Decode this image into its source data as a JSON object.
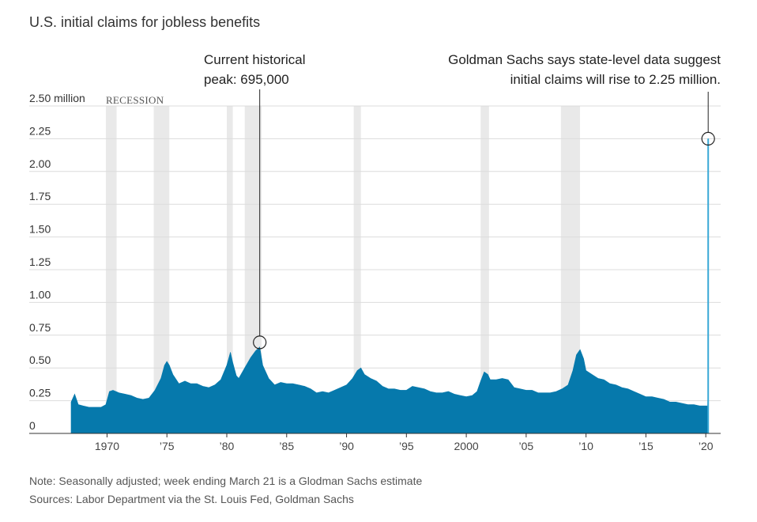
{
  "chart_data": {
    "type": "area",
    "title": "U.S. initial claims for jobless benefits",
    "y_unit_label": "2.50 million",
    "ylim": [
      0,
      2.5
    ],
    "xlim": [
      1967.0,
      2020.45
    ],
    "y_ticks": [
      {
        "value": 0,
        "label": "0"
      },
      {
        "value": 0.25,
        "label": "0.25"
      },
      {
        "value": 0.5,
        "label": "0.50"
      },
      {
        "value": 0.75,
        "label": "0.75"
      },
      {
        "value": 1.0,
        "label": "1.00"
      },
      {
        "value": 1.25,
        "label": "1.25"
      },
      {
        "value": 1.5,
        "label": "1.50"
      },
      {
        "value": 1.75,
        "label": "1.75"
      },
      {
        "value": 2.0,
        "label": "2.00"
      },
      {
        "value": 2.25,
        "label": "2.25"
      },
      {
        "value": 2.5,
        "label": "2.50 million"
      }
    ],
    "x_ticks": [
      {
        "value": 1970,
        "label": "1970"
      },
      {
        "value": 1975,
        "label": "’75"
      },
      {
        "value": 1980,
        "label": "’80"
      },
      {
        "value": 1985,
        "label": "’85"
      },
      {
        "value": 1990,
        "label": "’90"
      },
      {
        "value": 1995,
        "label": "’95"
      },
      {
        "value": 2000,
        "label": "2000"
      },
      {
        "value": 2005,
        "label": "’05"
      },
      {
        "value": 2010,
        "label": "’10"
      },
      {
        "value": 2015,
        "label": "’15"
      },
      {
        "value": 2020,
        "label": "’20"
      }
    ],
    "recession_label": "RECESSION",
    "recessions": [
      [
        1969.9,
        1970.8
      ],
      [
        1973.9,
        1975.2
      ],
      [
        1980.0,
        1980.5
      ],
      [
        1981.5,
        1982.9
      ],
      [
        1990.6,
        1991.2
      ],
      [
        2001.2,
        2001.9
      ],
      [
        2007.9,
        2009.5
      ]
    ],
    "series": [
      {
        "color": "#0679ac",
        "x": [
          1967.0,
          1967.3,
          1967.6,
          1968.0,
          1968.5,
          1969.0,
          1969.5,
          1969.9,
          1970.2,
          1970.5,
          1971.0,
          1971.5,
          1972.0,
          1972.5,
          1973.0,
          1973.5,
          1974.0,
          1974.5,
          1974.8,
          1975.0,
          1975.2,
          1975.5,
          1976.0,
          1976.5,
          1977.0,
          1977.5,
          1978.0,
          1978.5,
          1979.0,
          1979.5,
          1980.0,
          1980.3,
          1980.5,
          1980.8,
          1981.0,
          1981.5,
          1982.0,
          1982.4,
          1982.75,
          1983.0,
          1983.5,
          1984.0,
          1984.5,
          1985.0,
          1985.5,
          1986.0,
          1986.5,
          1987.0,
          1987.5,
          1988.0,
          1988.5,
          1989.0,
          1989.5,
          1990.0,
          1990.5,
          1990.9,
          1991.2,
          1991.5,
          1992.0,
          1992.5,
          1993.0,
          1993.5,
          1994.0,
          1994.5,
          1995.0,
          1995.5,
          1996.0,
          1996.5,
          1997.0,
          1997.5,
          1998.0,
          1998.5,
          1999.0,
          1999.5,
          2000.0,
          2000.5,
          2000.9,
          2001.2,
          2001.5,
          2001.8,
          2002.0,
          2002.5,
          2003.0,
          2003.5,
          2004.0,
          2004.5,
          2005.0,
          2005.5,
          2006.0,
          2006.5,
          2007.0,
          2007.5,
          2008.0,
          2008.5,
          2008.9,
          2009.2,
          2009.5,
          2009.8,
          2010.0,
          2010.5,
          2011.0,
          2011.5,
          2012.0,
          2012.5,
          2013.0,
          2013.5,
          2014.0,
          2014.5,
          2015.0,
          2015.5,
          2016.0,
          2016.5,
          2017.0,
          2017.5,
          2018.0,
          2018.5,
          2019.0,
          2019.5,
          2020.0,
          2020.15,
          2020.18,
          2020.2,
          2020.22
        ],
        "values": [
          0.24,
          0.3,
          0.22,
          0.21,
          0.2,
          0.2,
          0.2,
          0.22,
          0.32,
          0.33,
          0.31,
          0.3,
          0.29,
          0.27,
          0.26,
          0.27,
          0.33,
          0.42,
          0.52,
          0.55,
          0.52,
          0.45,
          0.38,
          0.4,
          0.38,
          0.38,
          0.36,
          0.35,
          0.37,
          0.41,
          0.52,
          0.62,
          0.54,
          0.44,
          0.42,
          0.5,
          0.58,
          0.63,
          0.66,
          0.52,
          0.42,
          0.37,
          0.39,
          0.38,
          0.38,
          0.37,
          0.36,
          0.34,
          0.31,
          0.32,
          0.31,
          0.33,
          0.35,
          0.37,
          0.42,
          0.48,
          0.5,
          0.45,
          0.42,
          0.4,
          0.36,
          0.34,
          0.34,
          0.33,
          0.33,
          0.36,
          0.35,
          0.34,
          0.32,
          0.31,
          0.31,
          0.32,
          0.3,
          0.29,
          0.28,
          0.29,
          0.32,
          0.4,
          0.47,
          0.45,
          0.41,
          0.41,
          0.42,
          0.41,
          0.35,
          0.34,
          0.33,
          0.33,
          0.31,
          0.31,
          0.31,
          0.32,
          0.34,
          0.37,
          0.48,
          0.6,
          0.64,
          0.57,
          0.48,
          0.45,
          0.42,
          0.41,
          0.38,
          0.37,
          0.35,
          0.34,
          0.32,
          0.3,
          0.28,
          0.28,
          0.27,
          0.26,
          0.24,
          0.24,
          0.23,
          0.22,
          0.22,
          0.21,
          0.21,
          0.21,
          0.28,
          2.25,
          2.25
        ]
      }
    ],
    "annotations": [
      {
        "lines": [
          "Current historical",
          "peak: 695,000"
        ],
        "x": 1982.75,
        "y": 0.695,
        "align": "left"
      },
      {
        "lines": [
          "Goldman Sachs says state-level data suggest",
          "initial claims will rise to 2.25 million."
        ],
        "x": 2020.2,
        "y": 2.25,
        "align": "right"
      }
    ],
    "estimate_color": "#39a9d6"
  },
  "note": "Note: Seasonally adjusted; week ending March 21 is a Glodman Sachs estimate",
  "sources": "Sources: Labor Department via the St. Louis Fed, Goldman Sachs"
}
